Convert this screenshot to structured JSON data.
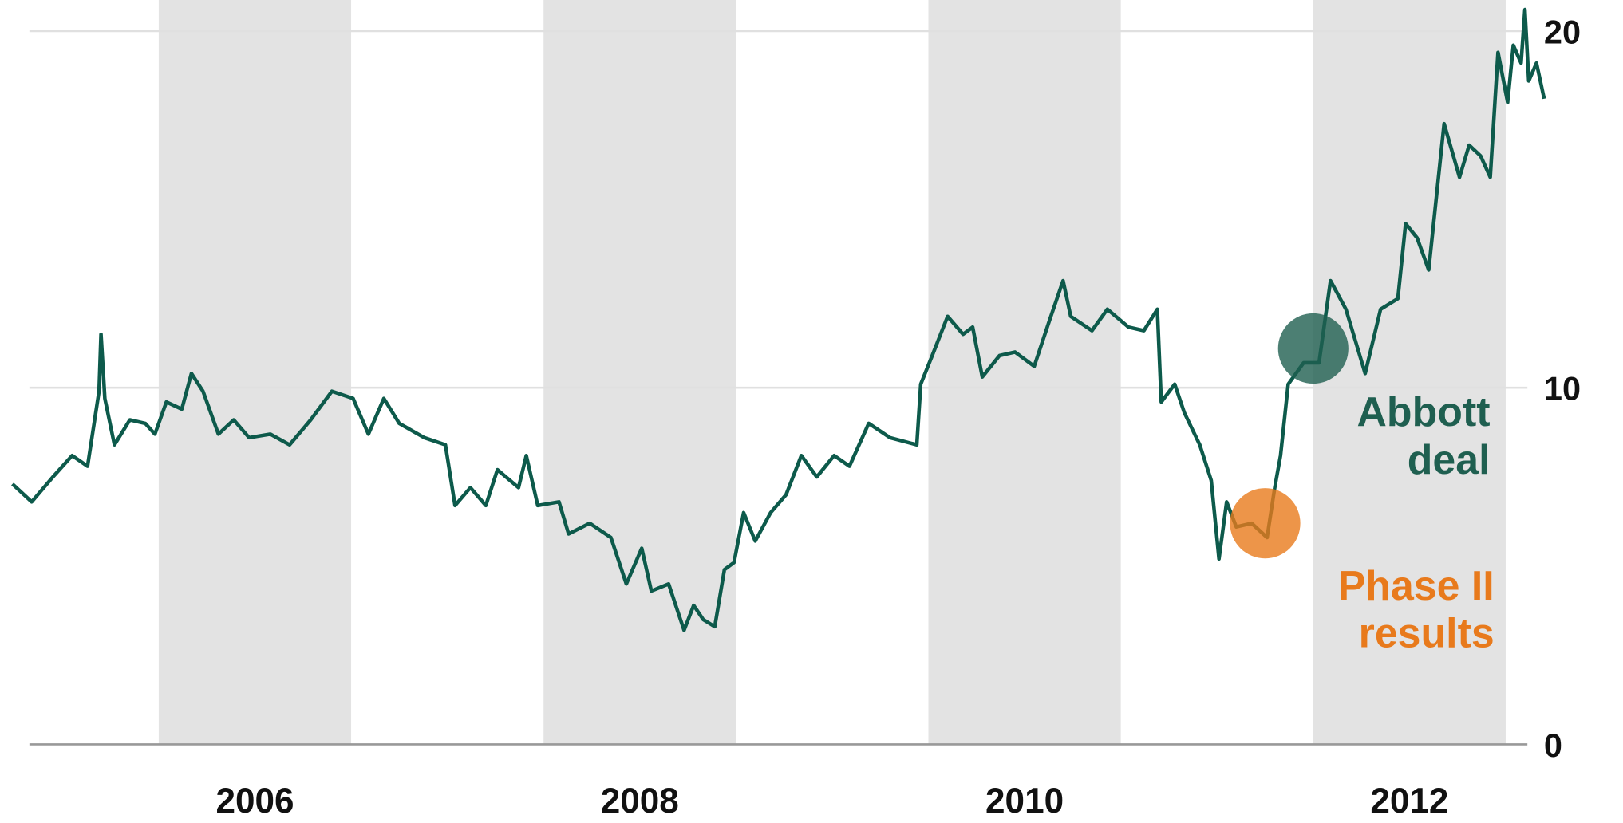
{
  "chart_data": {
    "type": "line",
    "xlim": [
      2005.2,
      2013.2
    ],
    "xticks": [
      2006,
      2008,
      2010,
      2012
    ],
    "ylim": [
      0,
      20
    ],
    "yticks": [
      0,
      10,
      20
    ],
    "grid": true,
    "series": [
      {
        "color": "#0d5a4b",
        "x": [
          2005.24,
          2005.34,
          2005.45,
          2005.55,
          2005.63,
          2005.69,
          2005.7,
          2005.72,
          2005.77,
          2005.85,
          2005.93,
          2005.98,
          2006.04,
          2006.12,
          2006.17,
          2006.23,
          2006.31,
          2006.39,
          2006.47,
          2006.58,
          2006.68,
          2006.79,
          2006.9,
          2007.01,
          2007.09,
          2007.17,
          2007.25,
          2007.38,
          2007.49,
          2007.54,
          2007.62,
          2007.7,
          2007.76,
          2007.87,
          2007.91,
          2007.97,
          2008.08,
          2008.13,
          2008.24,
          2008.35,
          2008.43,
          2008.51,
          2008.56,
          2008.65,
          2008.73,
          2008.78,
          2008.83,
          2008.89,
          2008.94,
          2008.99,
          2009.04,
          2009.1,
          2009.18,
          2009.26,
          2009.34,
          2009.42,
          2009.51,
          2009.59,
          2009.69,
          2009.8,
          2009.94,
          2009.96,
          2010.02,
          2010.1,
          2010.18,
          2010.23,
          2010.28,
          2010.37,
          2010.45,
          2010.55,
          2010.63,
          2010.7,
          2010.74,
          2010.85,
          2010.93,
          2011.04,
          2011.12,
          2011.19,
          2011.21,
          2011.28,
          2011.33,
          2011.41,
          2011.47,
          2011.51,
          2011.55,
          2011.6,
          2011.68,
          2011.76,
          2011.8,
          2011.83,
          2011.87,
          2011.95,
          2012.03,
          2012.09,
          2012.17,
          2012.22,
          2012.27,
          2012.35,
          2012.44,
          2012.48,
          2012.54,
          2012.6,
          2012.68,
          2012.76,
          2012.81,
          2012.87,
          2012.92,
          2012.96,
          2013.01,
          2013.04,
          2013.08,
          2013.1,
          2013.12,
          2013.16,
          2013.2
        ],
        "values": [
          7.3,
          6.8,
          7.5,
          8.1,
          7.8,
          9.9,
          11.5,
          9.7,
          8.4,
          9.1,
          9.0,
          8.7,
          9.6,
          9.4,
          10.4,
          9.9,
          8.7,
          9.1,
          8.6,
          8.7,
          8.4,
          9.1,
          9.9,
          9.7,
          8.7,
          9.7,
          9.0,
          8.6,
          8.4,
          6.7,
          7.2,
          6.7,
          7.7,
          7.2,
          8.1,
          6.7,
          6.8,
          5.9,
          6.2,
          5.8,
          4.5,
          5.5,
          4.3,
          4.5,
          3.2,
          3.9,
          3.5,
          3.3,
          4.9,
          5.1,
          6.5,
          5.7,
          6.5,
          7.0,
          8.1,
          7.5,
          8.1,
          7.8,
          9.0,
          8.6,
          8.4,
          10.1,
          10.9,
          12.0,
          11.5,
          11.7,
          10.3,
          10.9,
          11.0,
          10.6,
          11.9,
          13.0,
          12.0,
          11.6,
          12.2,
          11.7,
          11.6,
          12.2,
          9.6,
          10.1,
          9.3,
          8.4,
          7.4,
          5.2,
          6.8,
          6.1,
          6.2,
          5.8,
          7.2,
          8.1,
          10.1,
          10.7,
          10.7,
          13.0,
          12.2,
          11.3,
          10.4,
          12.2,
          12.5,
          14.6,
          14.2,
          13.3,
          17.4,
          15.9,
          16.8,
          16.5,
          15.9,
          19.4,
          18.0,
          19.6,
          19.1,
          20.6,
          18.6,
          19.1,
          18.1
        ]
      }
    ],
    "annotations": [
      {
        "lines": [
          "Abbott",
          "deal"
        ],
        "x": 2012.0,
        "y": 11.1,
        "color": "#1f5f50"
      },
      {
        "lines": [
          "Phase II",
          "results"
        ],
        "x": 2011.75,
        "y": 6.2,
        "color": "#e87a1c"
      }
    ]
  }
}
